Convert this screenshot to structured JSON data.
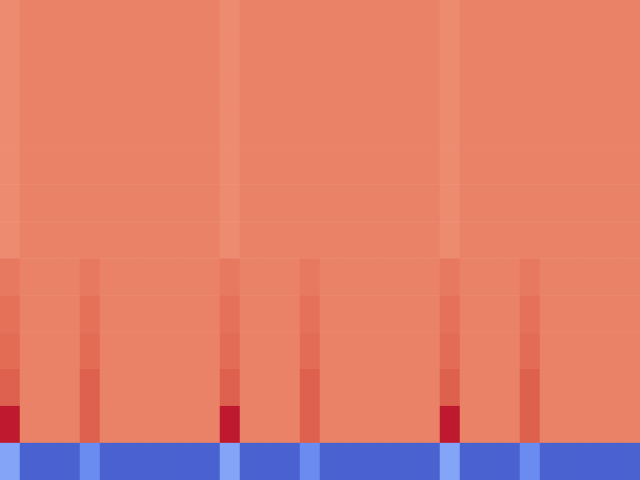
{
  "chart_data": {
    "type": "heatmap",
    "tick_labels": false,
    "color_range": [
      0,
      1
    ],
    "cells": [
      [
        0.78,
        0.8,
        0.8,
        0.8,
        0.8,
        0.8,
        0.8,
        0.8,
        0.8,
        0.8,
        0.8,
        0.78,
        0.8,
        0.8,
        0.8,
        0.8,
        0.8,
        0.8,
        0.8,
        0.8,
        0.8,
        0.8,
        0.78,
        0.8,
        0.8,
        0.8,
        0.8,
        0.8,
        0.8,
        0.8,
        0.8,
        0.8
      ],
      [
        0.78,
        0.8,
        0.8,
        0.8,
        0.8,
        0.8,
        0.8,
        0.8,
        0.8,
        0.8,
        0.8,
        0.78,
        0.8,
        0.8,
        0.8,
        0.8,
        0.8,
        0.8,
        0.8,
        0.8,
        0.8,
        0.8,
        0.78,
        0.8,
        0.8,
        0.8,
        0.8,
        0.8,
        0.8,
        0.8,
        0.8,
        0.8
      ],
      [
        0.78,
        0.8,
        0.8,
        0.8,
        0.8,
        0.8,
        0.8,
        0.8,
        0.8,
        0.8,
        0.8,
        0.78,
        0.8,
        0.8,
        0.8,
        0.8,
        0.8,
        0.8,
        0.8,
        0.8,
        0.8,
        0.8,
        0.78,
        0.8,
        0.8,
        0.8,
        0.8,
        0.8,
        0.8,
        0.8,
        0.8,
        0.8
      ],
      [
        0.78,
        0.8,
        0.8,
        0.8,
        0.8,
        0.8,
        0.8,
        0.8,
        0.8,
        0.8,
        0.8,
        0.78,
        0.8,
        0.8,
        0.8,
        0.8,
        0.8,
        0.8,
        0.8,
        0.8,
        0.8,
        0.8,
        0.78,
        0.8,
        0.8,
        0.8,
        0.8,
        0.8,
        0.8,
        0.8,
        0.8,
        0.8
      ],
      [
        0.78,
        0.8,
        0.8,
        0.8,
        0.8,
        0.8,
        0.8,
        0.8,
        0.8,
        0.8,
        0.8,
        0.78,
        0.8,
        0.8,
        0.8,
        0.8,
        0.8,
        0.8,
        0.8,
        0.8,
        0.8,
        0.8,
        0.78,
        0.8,
        0.8,
        0.8,
        0.8,
        0.8,
        0.8,
        0.8,
        0.8,
        0.8
      ],
      [
        0.78,
        0.8,
        0.8,
        0.8,
        0.8,
        0.8,
        0.8,
        0.8,
        0.8,
        0.8,
        0.8,
        0.78,
        0.8,
        0.8,
        0.8,
        0.8,
        0.8,
        0.8,
        0.8,
        0.8,
        0.8,
        0.8,
        0.78,
        0.8,
        0.8,
        0.8,
        0.8,
        0.8,
        0.8,
        0.8,
        0.8,
        0.8
      ],
      [
        0.78,
        0.8,
        0.8,
        0.8,
        0.8,
        0.8,
        0.8,
        0.8,
        0.8,
        0.8,
        0.8,
        0.78,
        0.8,
        0.8,
        0.8,
        0.8,
        0.8,
        0.8,
        0.8,
        0.8,
        0.8,
        0.8,
        0.78,
        0.8,
        0.8,
        0.8,
        0.8,
        0.8,
        0.8,
        0.8,
        0.8,
        0.8
      ],
      [
        0.82,
        0.8,
        0.8,
        0.8,
        0.82,
        0.8,
        0.8,
        0.8,
        0.8,
        0.8,
        0.8,
        0.82,
        0.8,
        0.8,
        0.8,
        0.82,
        0.8,
        0.8,
        0.8,
        0.8,
        0.8,
        0.8,
        0.82,
        0.8,
        0.8,
        0.8,
        0.82,
        0.8,
        0.8,
        0.8,
        0.8,
        0.8
      ],
      [
        0.84,
        0.8,
        0.8,
        0.8,
        0.84,
        0.8,
        0.8,
        0.8,
        0.8,
        0.8,
        0.8,
        0.84,
        0.8,
        0.8,
        0.8,
        0.84,
        0.8,
        0.8,
        0.8,
        0.8,
        0.8,
        0.8,
        0.84,
        0.8,
        0.8,
        0.8,
        0.84,
        0.8,
        0.8,
        0.8,
        0.8,
        0.8
      ],
      [
        0.85,
        0.8,
        0.8,
        0.8,
        0.85,
        0.8,
        0.8,
        0.8,
        0.8,
        0.8,
        0.8,
        0.85,
        0.8,
        0.8,
        0.8,
        0.85,
        0.8,
        0.8,
        0.8,
        0.8,
        0.8,
        0.8,
        0.85,
        0.8,
        0.8,
        0.8,
        0.85,
        0.8,
        0.8,
        0.8,
        0.8,
        0.8
      ],
      [
        0.87,
        0.8,
        0.8,
        0.8,
        0.87,
        0.8,
        0.8,
        0.8,
        0.8,
        0.8,
        0.8,
        0.87,
        0.8,
        0.8,
        0.8,
        0.87,
        0.8,
        0.8,
        0.8,
        0.8,
        0.8,
        0.8,
        0.87,
        0.8,
        0.8,
        0.8,
        0.87,
        0.8,
        0.8,
        0.8,
        0.8,
        0.8
      ],
      [
        0.97,
        0.8,
        0.8,
        0.8,
        0.87,
        0.8,
        0.8,
        0.8,
        0.8,
        0.8,
        0.8,
        0.97,
        0.8,
        0.8,
        0.8,
        0.87,
        0.8,
        0.8,
        0.8,
        0.8,
        0.8,
        0.8,
        0.97,
        0.8,
        0.8,
        0.8,
        0.87,
        0.8,
        0.8,
        0.8,
        0.8,
        0.8
      ],
      [
        0.22,
        0.05,
        0.05,
        0.05,
        0.15,
        0.05,
        0.05,
        0.05,
        0.05,
        0.05,
        0.05,
        0.22,
        0.05,
        0.05,
        0.05,
        0.15,
        0.05,
        0.05,
        0.05,
        0.05,
        0.05,
        0.05,
        0.22,
        0.05,
        0.05,
        0.05,
        0.15,
        0.05,
        0.05,
        0.05,
        0.05,
        0.05
      ]
    ]
  }
}
